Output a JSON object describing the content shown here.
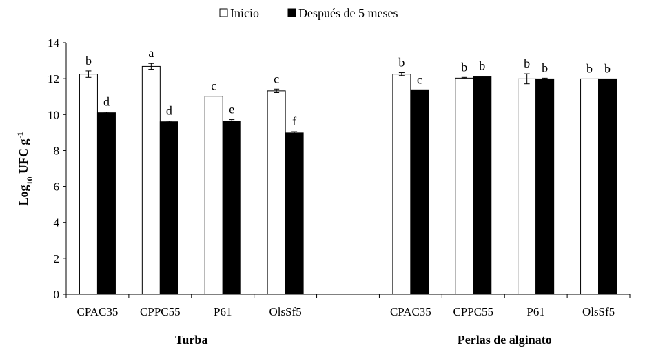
{
  "chart_data": {
    "type": "bar",
    "title": "",
    "ylabel": "Log10 UFC g-1",
    "ylabel_parts": {
      "base": "Log",
      "sub": "10",
      "mid": " UFC g",
      "sup": "-1"
    },
    "ylim": [
      0,
      14
    ],
    "yticks": [
      0,
      2,
      4,
      6,
      8,
      10,
      12,
      14
    ],
    "grid": false,
    "legend_position": "top-center",
    "colors": {
      "Inicio": "#ffffff",
      "Después de 5 meses": "#000000"
    },
    "groups": [
      {
        "label": "Turba",
        "categories": [
          "CPAC35",
          "CPPC55",
          "P61",
          "OlsSf5"
        ]
      },
      {
        "label": "",
        "categories": [
          ""
        ]
      },
      {
        "label": "Perlas de alginato",
        "categories": [
          "CPAC35",
          "CPPC55",
          "P61",
          "OlsSf5"
        ]
      }
    ],
    "categories": [
      "CPAC35",
      "CPPC55",
      "P61",
      "OlsSf5",
      "",
      "CPAC35",
      "CPPC55",
      "P61",
      "OlsSf5"
    ],
    "series": [
      {
        "name": "Inicio",
        "values": [
          12.25,
          12.68,
          11.02,
          11.32,
          null,
          12.25,
          12.03,
          11.99,
          11.99
        ],
        "errors": [
          0.18,
          0.16,
          0.0,
          0.1,
          null,
          0.08,
          0.04,
          0.28,
          0.0
        ],
        "labels": [
          "b",
          "a",
          "c",
          "c",
          "",
          "b",
          "b",
          "b",
          "b"
        ]
      },
      {
        "name": "Después de 5 meses",
        "values": [
          10.1,
          9.6,
          9.63,
          8.98,
          null,
          11.38,
          12.1,
          11.99,
          11.99
        ],
        "errors": [
          0.04,
          0.04,
          0.09,
          0.07,
          null,
          0.0,
          0.04,
          0.04,
          0.0
        ],
        "labels": [
          "d",
          "d",
          "e",
          "f",
          "",
          "c",
          "b",
          "b",
          "b"
        ]
      }
    ]
  }
}
